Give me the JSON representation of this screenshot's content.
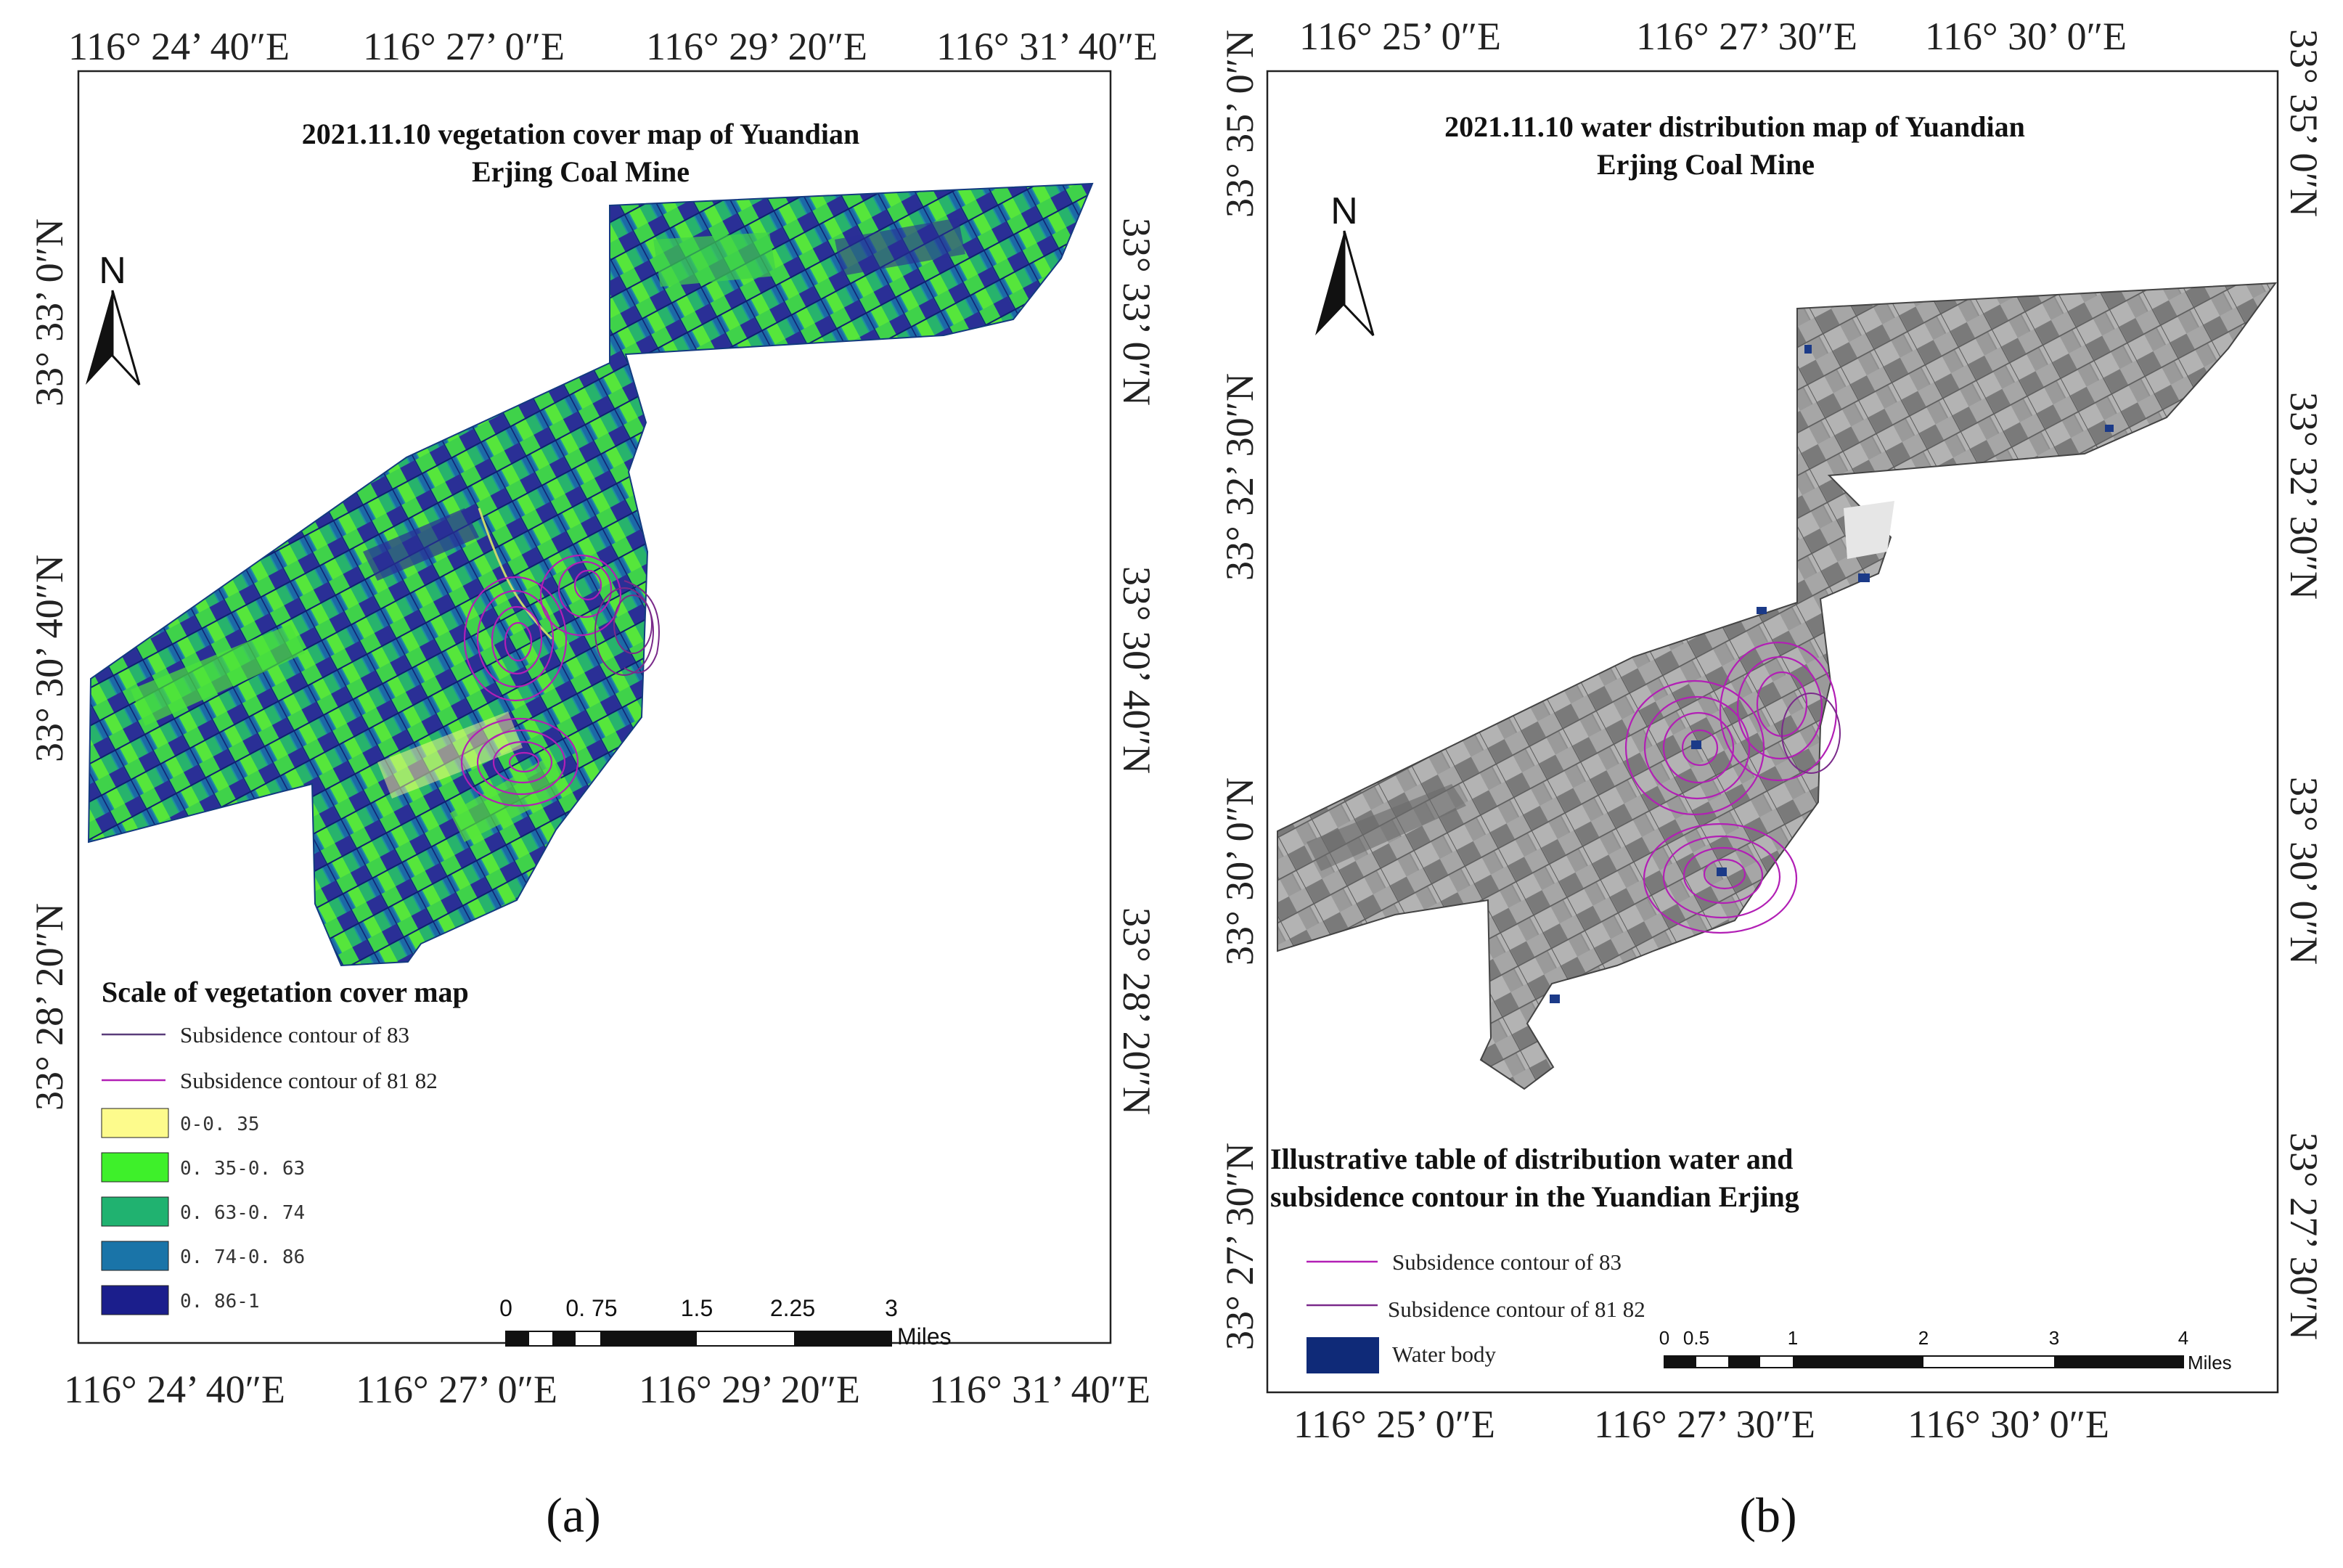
{
  "panel_a": {
    "title_line1": "2021.11.10 vegetation cover map of Yuandian",
    "title_line2": "Erjing Coal Mine",
    "north": "N",
    "lon_ticks_top": [
      "116° 24’ 40″E",
      "116° 27’ 0″E",
      "116° 29’ 20″E",
      "116° 31’ 40″E"
    ],
    "lon_ticks_bottom": [
      "116° 24’ 40″E",
      "116° 27’ 0″E",
      "116° 29’ 20″E",
      "116° 31’ 40″E"
    ],
    "lat_ticks": [
      "33° 33’ 0″N",
      "33° 30’ 40″N",
      "33° 28’ 20″N"
    ],
    "legend_title": "Scale of vegetation cover map",
    "legend_lines": [
      "Subsidence contour of 83",
      "Subsidence contour of 81 82"
    ],
    "legend_classes": [
      {
        "label": "0-0. 35",
        "color": "#fdfb8c"
      },
      {
        "label": "0. 35-0. 63",
        "color": "#3ef02a"
      },
      {
        "label": "0. 63-0. 74",
        "color": "#20b270"
      },
      {
        "label": "0. 74-0. 86",
        "color": "#1a74a8"
      },
      {
        "label": "0. 86-1",
        "color": "#1b1e8c"
      }
    ],
    "scale_labels": [
      "0",
      "0. 75",
      "1.5",
      "2.25",
      "3"
    ],
    "scale_unit": "Miles",
    "label": "(a)"
  },
  "panel_b": {
    "title_line1": "2021.11.10 water distribution map of Yuandian",
    "title_line2": "Erjing Coal Mine",
    "north": "N",
    "lon_ticks_top": [
      "116° 25’ 0″E",
      "116° 27’ 30″E",
      "116° 30’ 0″E"
    ],
    "lon_ticks_bottom": [
      "116° 25’ 0″E",
      "116° 27’ 30″E",
      "116° 30’ 0″E"
    ],
    "lat_ticks": [
      "33° 35’ 0″N",
      "33° 32’ 30″N",
      "33° 30’ 0″N",
      "33° 27’ 30″N"
    ],
    "legend_title_line1": "Illustrative table of distribution water and",
    "legend_title_line2": "subsidence contour in the Yuandian Erjing",
    "legend_lines": [
      "Subsidence contour of 83",
      "Subsidence contour of 81 82"
    ],
    "legend_water": {
      "label": "Water body",
      "color": "#0f2a78"
    },
    "scale_labels": [
      "0",
      "0.5",
      "1",
      "2",
      "3",
      "4"
    ],
    "scale_unit": "Miles",
    "label": "(b)"
  }
}
